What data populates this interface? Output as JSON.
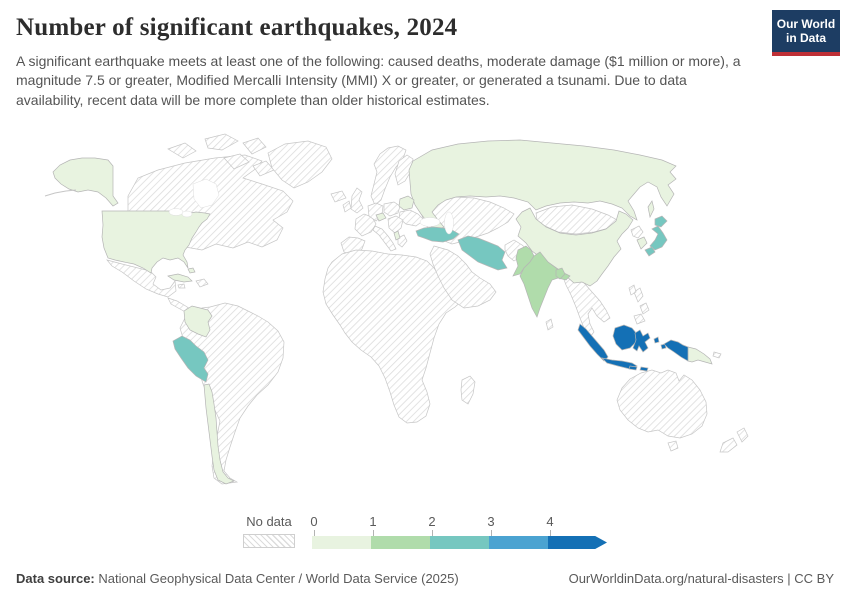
{
  "header": {
    "title": "Number of significant earthquakes, 2024",
    "subtitle": "A significant earthquake meets at least one of the following: caused deaths, moderate damage ($1 million or more), a magnitude 7.5 or greater, Modified Mercalli Intensity (MMI) X or greater, or generated a tsunami. Due to data availability, recent data will be more complete than older historical estimates.",
    "logo": {
      "line1": "Our World",
      "line2": "in Data",
      "bg_color": "#1d3d63",
      "accent_color": "#bf3036"
    }
  },
  "chart_data": {
    "type": "choropleth-map",
    "title": "Number of significant earthquakes, 2024",
    "year": "2024",
    "legend": {
      "no_data_label": "No data",
      "bins": [
        {
          "label": "0",
          "color": "#e8f3e0"
        },
        {
          "label": "1",
          "color": "#b0dcab"
        },
        {
          "label": "2",
          "color": "#76c7c0"
        },
        {
          "label": "3",
          "color": "#4ba3d1"
        },
        {
          "label": "4",
          "color": "#1470b5"
        }
      ],
      "open_ended_max": true
    },
    "countries": [
      {
        "name": "United States",
        "value": 0
      },
      {
        "name": "Cuba",
        "value": 0
      },
      {
        "name": "Bahamas",
        "value": 0
      },
      {
        "name": "Colombia",
        "value": 0
      },
      {
        "name": "Chile",
        "value": 0
      },
      {
        "name": "Russia",
        "value": 0
      },
      {
        "name": "China",
        "value": 0
      },
      {
        "name": "South Korea",
        "value": 0
      },
      {
        "name": "Belarus",
        "value": 0
      },
      {
        "name": "Austria",
        "value": 0
      },
      {
        "name": "Albania",
        "value": 0
      },
      {
        "name": "Papua New Guinea",
        "value": 0
      },
      {
        "name": "India",
        "value": 1
      },
      {
        "name": "Pakistan",
        "value": 1
      },
      {
        "name": "Bangladesh",
        "value": 1
      },
      {
        "name": "Turkey",
        "value": 2
      },
      {
        "name": "Iran",
        "value": 2
      },
      {
        "name": "Peru",
        "value": 2
      },
      {
        "name": "Japan",
        "value": 2
      },
      {
        "name": "Indonesia",
        "value": 4
      }
    ],
    "no_data_regions": [
      "Canada",
      "Greenland",
      "Mexico",
      "Central America",
      "Brazil",
      "Argentina",
      "most of Europe",
      "Africa",
      "Middle East",
      "Central Asia",
      "Mongolia",
      "Southeast Asia",
      "Philippines",
      "Australia",
      "New Zealand"
    ]
  },
  "footer": {
    "datasource_label": "Data source:",
    "datasource": "National Geophysical Data Center / World Data Service (2025)",
    "credit": "OurWorldinData.org/natural-disasters | CC BY"
  }
}
